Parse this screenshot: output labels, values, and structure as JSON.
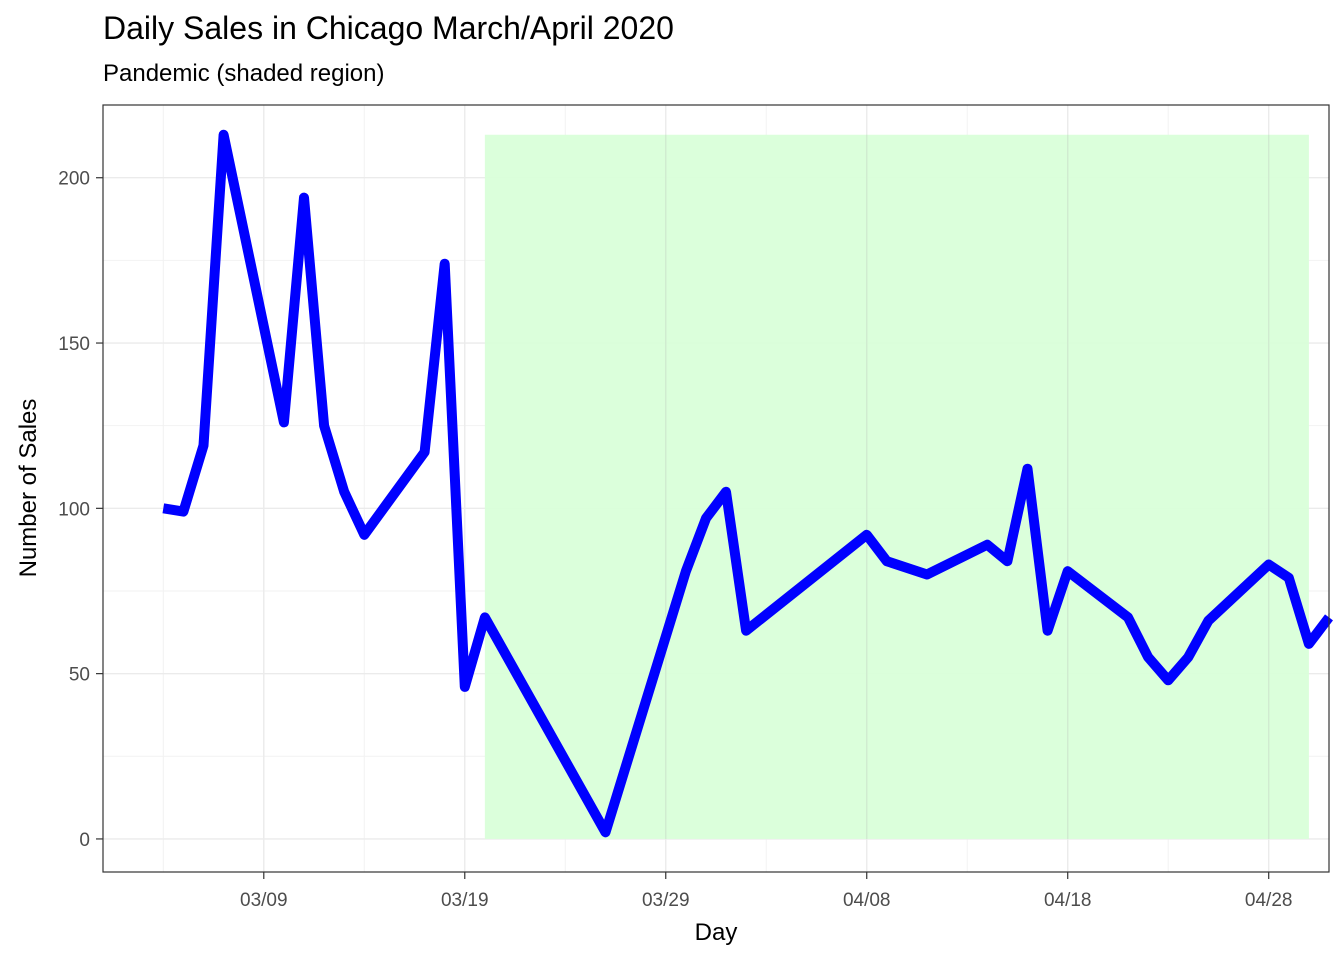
{
  "chart_data": {
    "type": "line",
    "title": "Daily Sales in Chicago March/April 2020",
    "subtitle": "Pandemic (shaded region)",
    "xlabel": "Day",
    "ylabel": "Number of Sales",
    "x_tick_labels": [
      "03/09",
      "03/19",
      "03/29",
      "04/08",
      "04/18",
      "04/28"
    ],
    "y_tick_labels": [
      "0",
      "50",
      "100",
      "150",
      "200"
    ],
    "xlim": [
      "2020-03-01",
      "2020-05-01"
    ],
    "ylim": [
      -10,
      222
    ],
    "grid": true,
    "shaded_region": {
      "start": "2020-03-20",
      "end": "2020-04-30",
      "ymin": 0,
      "ymax": 213,
      "color": "#d9ffd9"
    },
    "series": [
      {
        "color": "#0000ff",
        "x": [
          "2020-03-04",
          "2020-03-05",
          "2020-03-06",
          "2020-03-07",
          "2020-03-10",
          "2020-03-11",
          "2020-03-12",
          "2020-03-13",
          "2020-03-14",
          "2020-03-17",
          "2020-03-18",
          "2020-03-19",
          "2020-03-20",
          "2020-03-26",
          "2020-03-30",
          "2020-03-31",
          "2020-04-01",
          "2020-04-02",
          "2020-04-08",
          "2020-04-09",
          "2020-04-11",
          "2020-04-14",
          "2020-04-15",
          "2020-04-16",
          "2020-04-17",
          "2020-04-18",
          "2020-04-21",
          "2020-04-22",
          "2020-04-23",
          "2020-04-24",
          "2020-04-25",
          "2020-04-28",
          "2020-04-29",
          "2020-04-30",
          "2020-05-01"
        ],
        "y": [
          100,
          99,
          119,
          213,
          126,
          194,
          125,
          105,
          92,
          117,
          174,
          46,
          67,
          2,
          81,
          97,
          105,
          63,
          92,
          84,
          80,
          89,
          84,
          112,
          63,
          81,
          67,
          55,
          48,
          55,
          66,
          83,
          79,
          59,
          67
        ]
      }
    ]
  }
}
